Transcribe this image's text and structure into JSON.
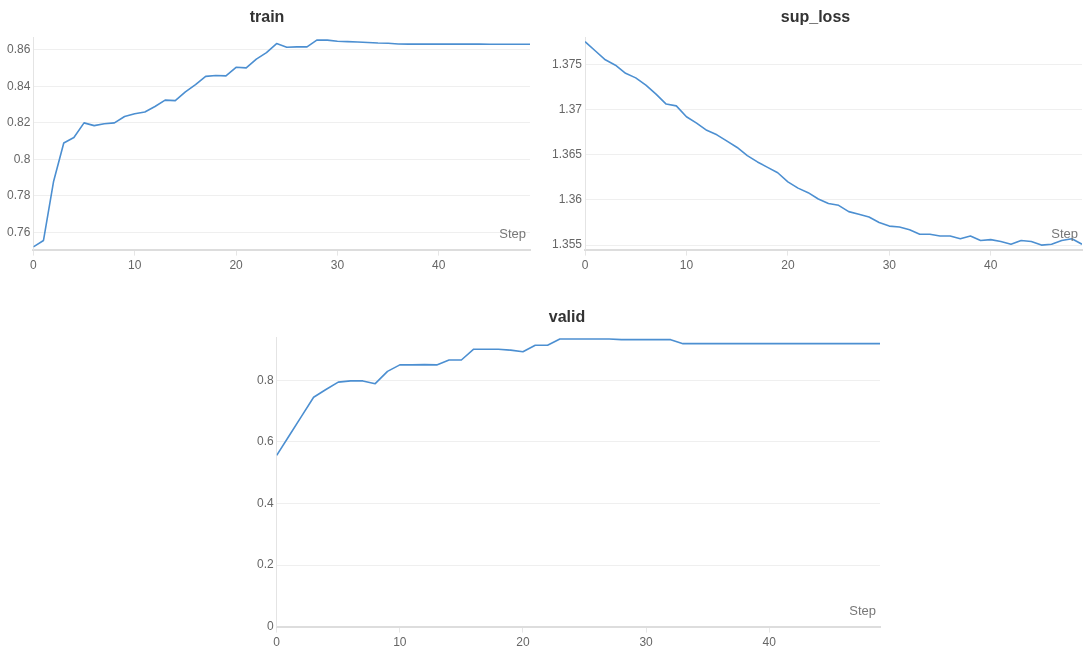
{
  "chart_data": [
    {
      "type": "line",
      "title": "train",
      "xlabel": "Step",
      "x": [
        0,
        1,
        2,
        3,
        4,
        5,
        6,
        7,
        8,
        9,
        10,
        11,
        12,
        13,
        14,
        15,
        16,
        17,
        18,
        19,
        20,
        21,
        22,
        23,
        24,
        25,
        26,
        27,
        28,
        29,
        30,
        31,
        32,
        33,
        34,
        35,
        36,
        37,
        38,
        39,
        40,
        41,
        42,
        43,
        44,
        45,
        46,
        47,
        48,
        49
      ],
      "series": [
        {
          "color": "#4c8fd1",
          "values": [
            0.752,
            0.7555,
            0.788,
            0.809,
            0.812,
            0.82,
            0.8185,
            0.8195,
            0.82,
            0.8235,
            0.825,
            0.826,
            0.829,
            0.8325,
            0.8322,
            0.837,
            0.841,
            0.8455,
            0.846,
            0.8458,
            0.8505,
            0.8502,
            0.855,
            0.8585,
            0.8635,
            0.8615,
            0.8617,
            0.8617,
            0.8655,
            0.8654,
            0.8648,
            0.8646,
            0.8644,
            0.8641,
            0.8638,
            0.8637,
            0.8633,
            0.8632,
            0.8632,
            0.8632,
            0.8632,
            0.8632,
            0.8632,
            0.8632,
            0.8632,
            0.8631,
            0.8631,
            0.8631,
            0.8631,
            0.8631
          ]
        }
      ],
      "xlim": [
        0,
        49
      ],
      "xticks": [
        0,
        10,
        20,
        30,
        40
      ],
      "ylim": [
        0.7505,
        0.867
      ],
      "yticks": [
        0.76,
        0.78,
        {
          "value": 0.8,
          "label": "0.8"
        },
        0.82,
        0.84,
        0.86
      ],
      "grid": "y"
    },
    {
      "type": "line",
      "title": "sup_loss",
      "xlabel": "Step",
      "x": [
        0,
        1,
        2,
        3,
        4,
        5,
        6,
        7,
        8,
        9,
        10,
        11,
        12,
        13,
        14,
        15,
        16,
        17,
        18,
        19,
        20,
        21,
        22,
        23,
        24,
        25,
        26,
        27,
        28,
        29,
        30,
        31,
        32,
        33,
        34,
        35,
        36,
        37,
        38,
        39,
        40,
        41,
        42,
        43,
        44,
        45,
        46,
        47,
        48,
        49
      ],
      "series": [
        {
          "color": "#4c8fd1",
          "values": [
            1.3775,
            1.3765,
            1.3755,
            1.3749,
            1.374,
            1.3735,
            1.3727,
            1.3717,
            1.3706,
            1.3704,
            1.3692,
            1.3685,
            1.3677,
            1.3672,
            1.3665,
            1.3658,
            1.3649,
            1.3642,
            1.3636,
            1.363,
            1.362,
            1.3613,
            1.3608,
            1.3601,
            1.3596,
            1.3594,
            1.3587,
            1.3584,
            1.3581,
            1.3575,
            1.3571,
            1.357,
            1.3567,
            1.3562,
            1.3562,
            1.356,
            1.356,
            1.3557,
            1.356,
            1.3555,
            1.3556,
            1.3554,
            1.3551,
            1.3555,
            1.3554,
            1.355,
            1.3551,
            1.3555,
            1.3557,
            1.3551
          ]
        }
      ],
      "xlim": [
        0,
        49
      ],
      "xticks": [
        0,
        10,
        20,
        30,
        40
      ],
      "ylim": [
        1.3545,
        1.378
      ],
      "yticks": [
        1.355,
        {
          "value": 1.36,
          "label": "1.36"
        },
        1.365,
        {
          "value": 1.37,
          "label": "1.37"
        },
        1.375
      ],
      "grid": "y"
    },
    {
      "type": "line",
      "title": "valid",
      "xlabel": "Step",
      "x": [
        0,
        1,
        2,
        3,
        4,
        5,
        6,
        7,
        8,
        9,
        10,
        11,
        12,
        13,
        14,
        15,
        16,
        17,
        18,
        19,
        20,
        21,
        22,
        23,
        24,
        25,
        26,
        27,
        28,
        29,
        30,
        31,
        32,
        33,
        34,
        35,
        36,
        37,
        38,
        39,
        40,
        41,
        42,
        43,
        44,
        45,
        46,
        47,
        48,
        49
      ],
      "series": [
        {
          "color": "#4c8fd1",
          "values": [
            0.556,
            0.619,
            0.682,
            0.745,
            0.77,
            0.794,
            0.798,
            0.798,
            0.789,
            0.829,
            0.85,
            0.85,
            0.851,
            0.85,
            0.866,
            0.866,
            0.901,
            0.901,
            0.901,
            0.898,
            0.893,
            0.914,
            0.914,
            0.934,
            0.934,
            0.934,
            0.934,
            0.934,
            0.932,
            0.932,
            0.932,
            0.932,
            0.932,
            0.919,
            0.919,
            0.919,
            0.919,
            0.919,
            0.919,
            0.919,
            0.919,
            0.919,
            0.919,
            0.919,
            0.919,
            0.919,
            0.919,
            0.919,
            0.919,
            0.919
          ]
        }
      ],
      "xlim": [
        0,
        49
      ],
      "xticks": [
        0,
        10,
        20,
        30,
        40
      ],
      "ylim": [
        0,
        0.94
      ],
      "yticks": [
        0,
        0.2,
        0.4,
        0.6,
        0.8
      ],
      "grid": "y"
    }
  ]
}
